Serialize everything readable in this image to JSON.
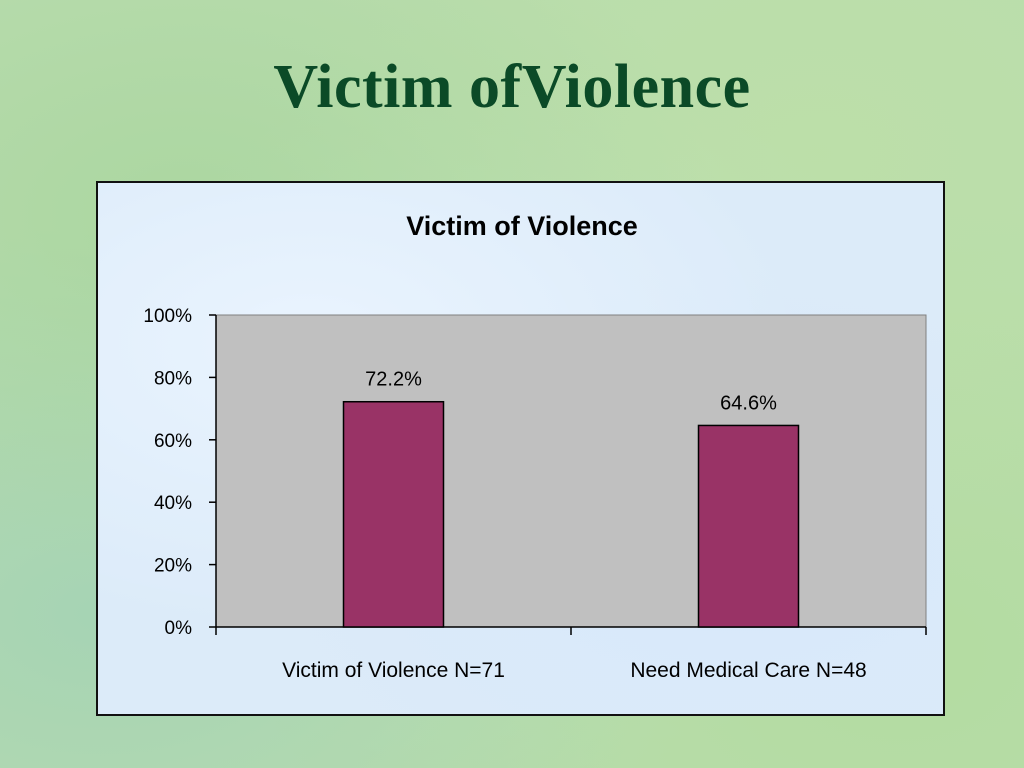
{
  "slide": {
    "title": "Victim ofViolence"
  },
  "colors": {
    "bar": "#993366",
    "plot_area": "#c0c0c0",
    "title": "#0b4a27"
  },
  "chart_data": {
    "type": "bar",
    "title": "Victim of Violence",
    "categories": [
      "Victim of Violence N=71",
      "Need Medical Care N=48"
    ],
    "values": [
      72.2,
      64.6
    ],
    "data_labels": [
      "72.2%",
      "64.6%"
    ],
    "y_ticks": [
      "0%",
      "20%",
      "40%",
      "60%",
      "80%",
      "100%"
    ],
    "ylim": [
      0,
      100
    ],
    "xlabel": "",
    "ylabel": "",
    "grid": false,
    "legend": "none"
  }
}
